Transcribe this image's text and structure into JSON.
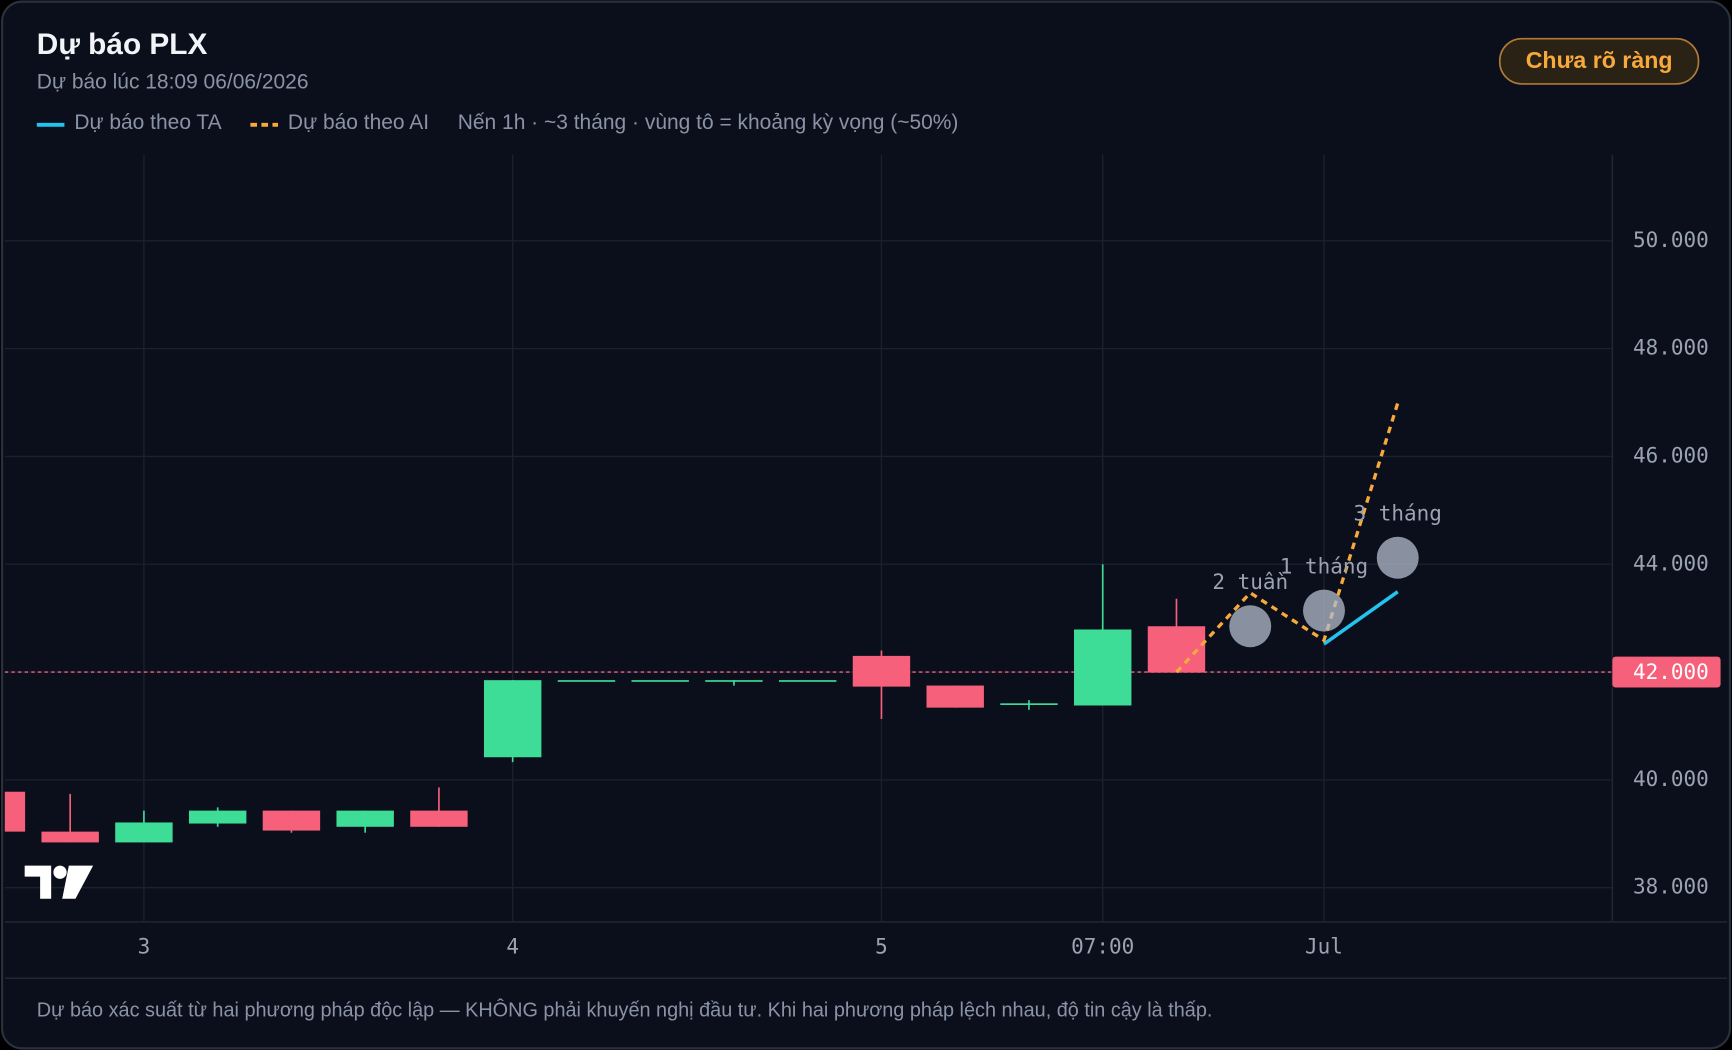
{
  "header": {
    "title": "Dự báo PLX",
    "subtitle": "Dự báo lúc 18:09 06/06/2026",
    "badge": "Chưa rõ ràng"
  },
  "chart_data": {
    "type": "candlestick",
    "note": "Nến 1h · ~3 tháng · vùng tô = khoảng kỳ vọng (~50%)",
    "categories": [
      null,
      null,
      "3",
      null,
      null,
      null,
      null,
      "4",
      null,
      null,
      null,
      null,
      "5",
      null,
      null,
      "07:00",
      null,
      null,
      "Jul",
      null
    ],
    "open": [
      39780,
      39040,
      38840,
      39190,
      39430,
      39130,
      39430,
      40420,
      41850,
      41850,
      41850,
      41850,
      42300,
      41750,
      41400,
      41380,
      42850,
      null,
      null,
      null
    ],
    "high": [
      39780,
      39740,
      39430,
      39490,
      39430,
      39430,
      39860,
      41850,
      41850,
      41850,
      41850,
      41850,
      42400,
      41750,
      41480,
      44000,
      43360,
      null,
      null,
      null
    ],
    "low": [
      39040,
      38840,
      38840,
      39130,
      39020,
      39020,
      39130,
      40330,
      41850,
      41850,
      41750,
      41850,
      41130,
      41340,
      41300,
      41380,
      41990,
      null,
      null,
      null
    ],
    "close": [
      39040,
      38840,
      39210,
      39430,
      39060,
      39430,
      39130,
      41850,
      41850,
      41850,
      41850,
      41850,
      41730,
      41340,
      41420,
      42790,
      41990,
      null,
      null,
      null
    ],
    "up_color": "#3ddc97",
    "down_color": "#f7607a",
    "series": [
      {
        "name": "Dự báo theo TA",
        "color": "#22c3ee",
        "dashed": false,
        "values": [
          null,
          null,
          null,
          null,
          null,
          null,
          null,
          null,
          null,
          null,
          null,
          null,
          null,
          null,
          null,
          null,
          42000,
          null,
          42520,
          43490
        ]
      },
      {
        "name": "Dự báo theo AI",
        "color": "#f7a93b",
        "dashed": true,
        "values": [
          null,
          null,
          null,
          null,
          null,
          null,
          null,
          null,
          null,
          null,
          null,
          null,
          null,
          null,
          null,
          null,
          42000,
          43470,
          42590,
          46990
        ]
      }
    ],
    "horizon_markers": {
      "values": [
        null,
        null,
        null,
        null,
        null,
        null,
        null,
        null,
        null,
        null,
        null,
        null,
        null,
        null,
        null,
        null,
        null,
        42850,
        43140,
        44120
      ],
      "labels": [
        null,
        null,
        null,
        null,
        null,
        null,
        null,
        null,
        null,
        null,
        null,
        null,
        null,
        null,
        null,
        null,
        null,
        "2 tuần",
        "1 tháng",
        "3 tháng"
      ]
    },
    "current_price": {
      "value": 42000,
      "label": "42.000"
    },
    "ylim": [
      37365,
      51600
    ],
    "yticks": [
      {
        "value": 38000,
        "label": "38.000"
      },
      {
        "value": 40000,
        "label": "40.000"
      },
      {
        "value": 42000,
        "label": "42.000"
      },
      {
        "value": 44000,
        "label": "44.000"
      },
      {
        "value": 46000,
        "label": "46.000"
      },
      {
        "value": 48000,
        "label": "48.000"
      },
      {
        "value": 50000,
        "label": "50.000"
      }
    ],
    "grid": true
  },
  "footer": "Dự báo xác suất từ hai phương pháp độc lập — KHÔNG phải khuyến nghị đầu tư. Khi hai phương pháp lệch nhau, độ tin cậy là thấp."
}
